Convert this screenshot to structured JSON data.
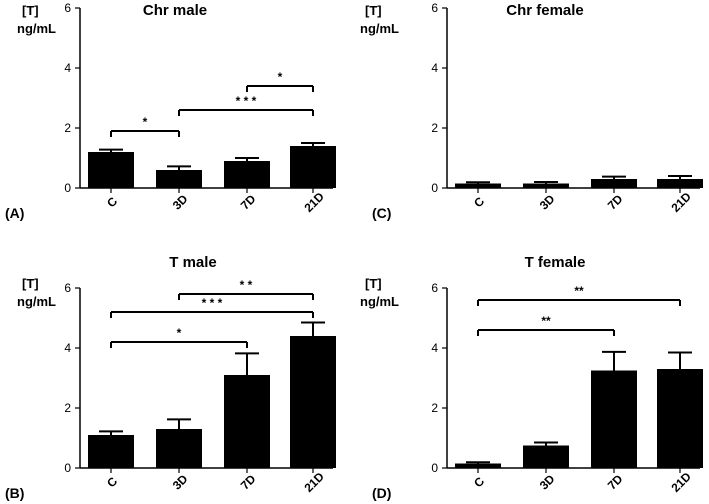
{
  "chart_data": [
    {
      "type": "bar",
      "panel_label": "(A)",
      "title": "Chr male",
      "ylabel": [
        "[T]",
        "ng/mL"
      ],
      "categories": [
        "C",
        "3D",
        "7D",
        "21D"
      ],
      "values": [
        1.2,
        0.6,
        0.9,
        1.4
      ],
      "errors": [
        0.08,
        0.12,
        0.1,
        0.1
      ],
      "ylim": [
        0,
        6
      ],
      "yticks": [
        0,
        2,
        4,
        6
      ],
      "significance": [
        {
          "from": 0,
          "to": 1,
          "y": 1.9,
          "label": "*"
        },
        {
          "from": 1,
          "to": 3,
          "y": 2.6,
          "label": "* * *"
        },
        {
          "from": 2,
          "to": 3,
          "y": 3.4,
          "label": "*"
        }
      ]
    },
    {
      "type": "bar",
      "panel_label": "(C)",
      "title": "Chr female",
      "ylabel": [
        "[T]",
        "ng/mL"
      ],
      "categories": [
        "C",
        "3D",
        "7D",
        "21D"
      ],
      "values": [
        0.15,
        0.15,
        0.3,
        0.3
      ],
      "errors": [
        0.04,
        0.05,
        0.08,
        0.1
      ],
      "ylim": [
        0,
        6
      ],
      "yticks": [
        0,
        2,
        4,
        6
      ],
      "significance": []
    },
    {
      "type": "bar",
      "panel_label": "(B)",
      "title": "T male",
      "ylabel": [
        "[T]",
        "ng/mL"
      ],
      "categories": [
        "C",
        "3D",
        "7D",
        "21D"
      ],
      "values": [
        1.1,
        1.3,
        3.1,
        4.4
      ],
      "errors": [
        0.12,
        0.32,
        0.72,
        0.45
      ],
      "ylim": [
        0,
        6
      ],
      "yticks": [
        0,
        2,
        4,
        6
      ],
      "significance": [
        {
          "from": 0,
          "to": 2,
          "y": 4.2,
          "label": "*"
        },
        {
          "from": 0,
          "to": 3,
          "y": 5.2,
          "label": "* * *"
        },
        {
          "from": 1,
          "to": 3,
          "y": 5.8,
          "label": "* *"
        }
      ]
    },
    {
      "type": "bar",
      "panel_label": "(D)",
      "title": "T female",
      "ylabel": [
        "[T]",
        "ng/mL"
      ],
      "categories": [
        "C",
        "3D",
        "7D",
        "21D"
      ],
      "values": [
        0.15,
        0.75,
        3.25,
        3.3
      ],
      "errors": [
        0.04,
        0.1,
        0.62,
        0.55
      ],
      "ylim": [
        0,
        6
      ],
      "yticks": [
        0,
        2,
        4,
        6
      ],
      "significance": [
        {
          "from": 0,
          "to": 2,
          "y": 4.6,
          "label": "**"
        },
        {
          "from": 0,
          "to": 3,
          "y": 5.6,
          "label": "**"
        }
      ]
    }
  ]
}
